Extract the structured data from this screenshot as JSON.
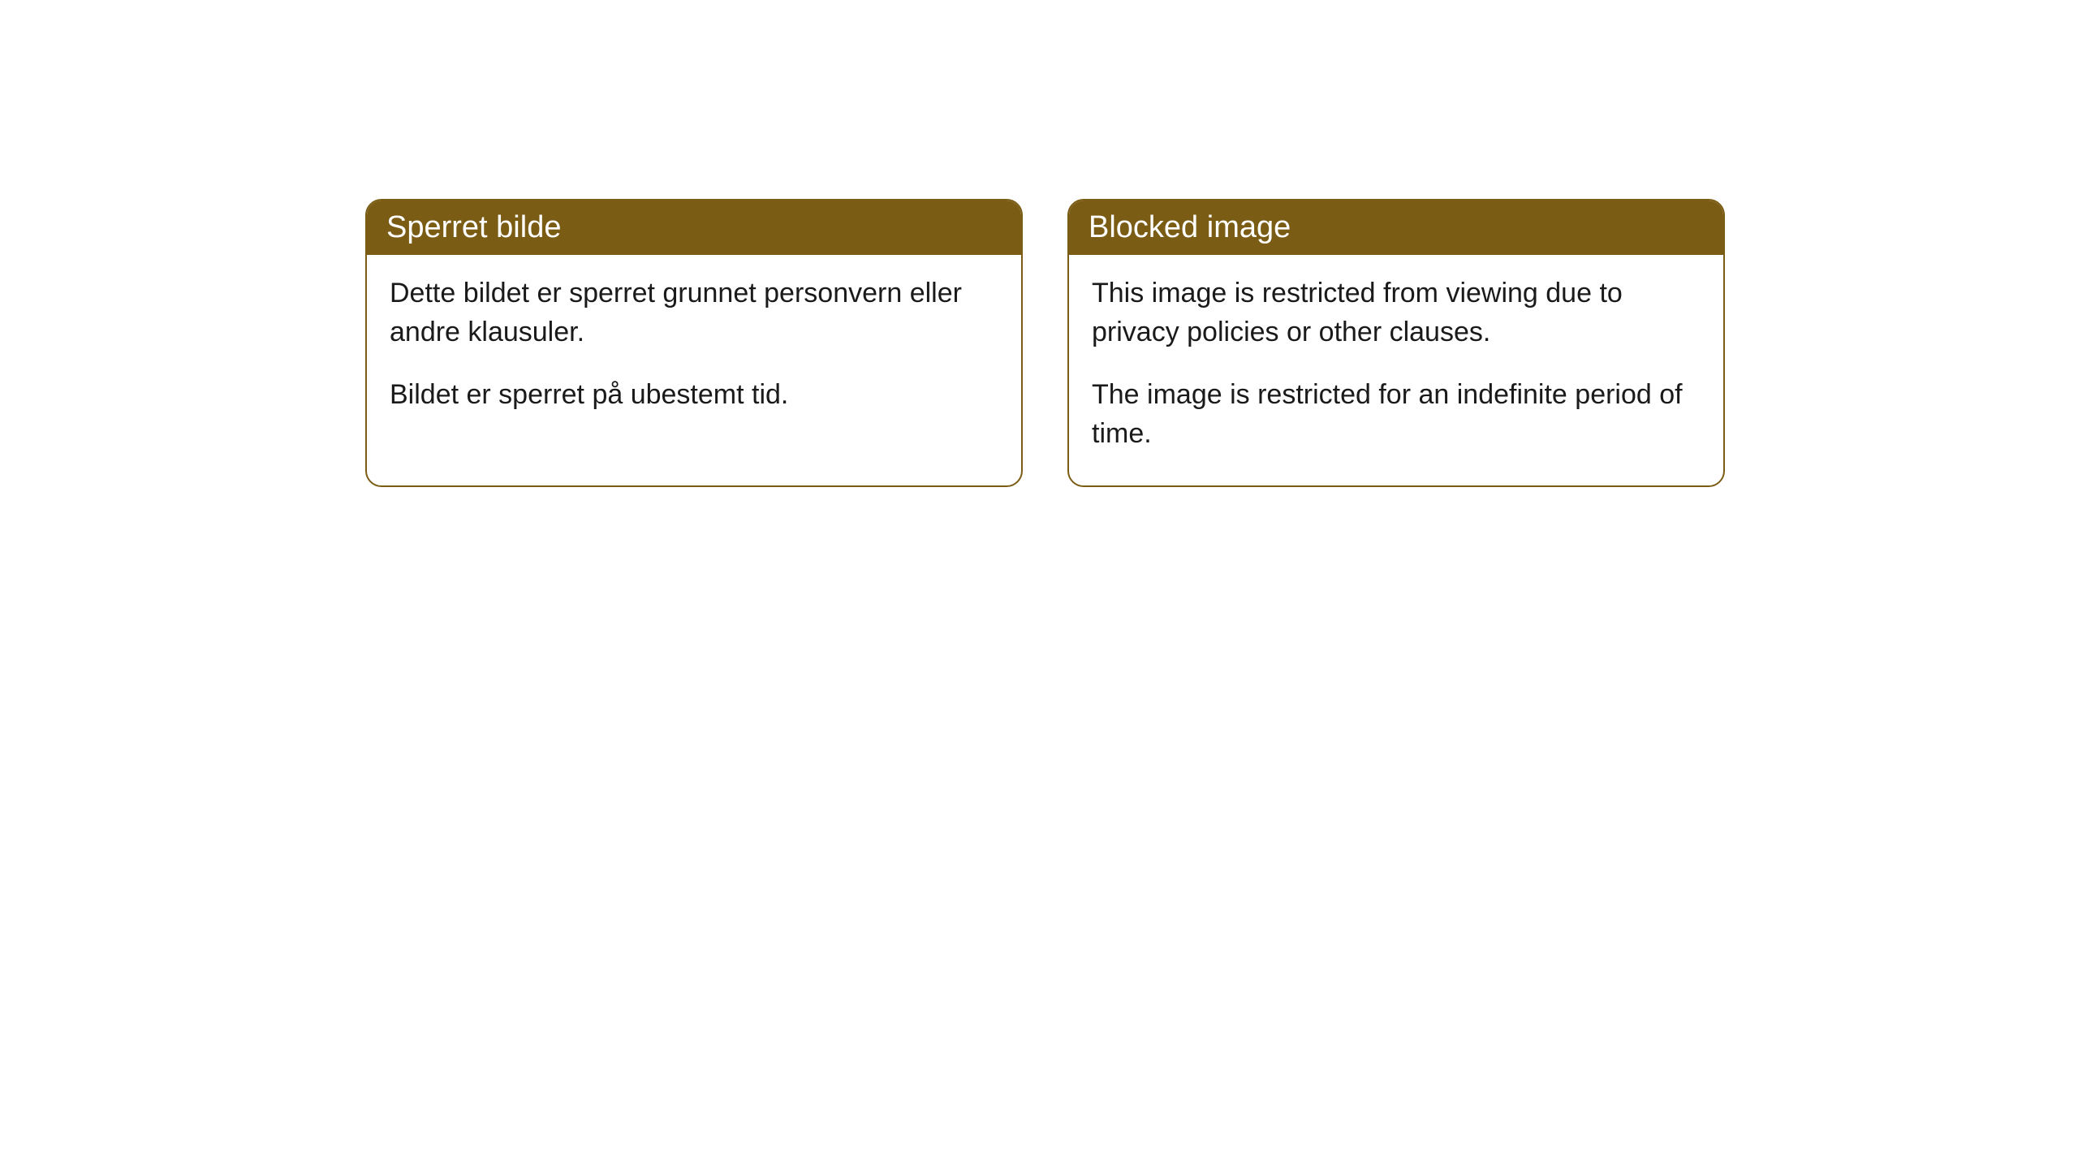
{
  "cards": [
    {
      "title": "Sperret bilde",
      "paragraph1": "Dette bildet er sperret grunnet personvern eller andre klausuler.",
      "paragraph2": "Bildet er sperret på ubestemt tid."
    },
    {
      "title": "Blocked image",
      "paragraph1": "This image is restricted from viewing due to privacy policies or other clauses.",
      "paragraph2": "The image is restricted for an indefinite period of time."
    }
  ],
  "styling": {
    "header_background": "#7a5c15",
    "header_text_color": "#ffffff",
    "border_color": "#7a5c15",
    "body_background": "#ffffff",
    "body_text_color": "#1a1a1a",
    "border_radius": 20,
    "title_fontsize": 38,
    "body_fontsize": 34
  }
}
